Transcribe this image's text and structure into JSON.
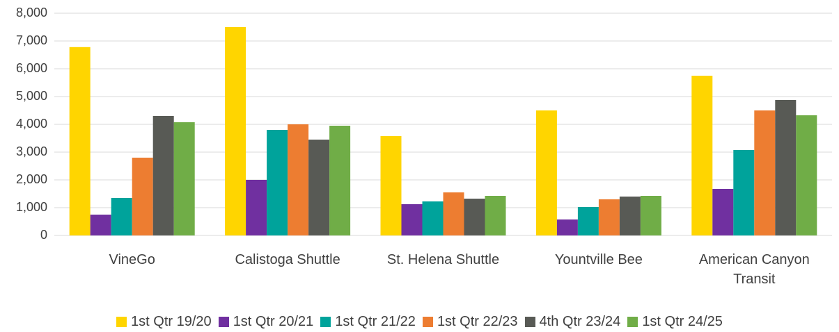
{
  "chart_data": {
    "type": "bar",
    "categories": [
      "VineGo",
      "Calistoga Shuttle",
      "St. Helena Shuttle",
      "Yountville Bee",
      "American Canyon Transit"
    ],
    "series": [
      {
        "name": "1st Qtr 19/20",
        "color": "#FFD500",
        "values": [
          6780,
          7500,
          3575,
          4500,
          5750
        ]
      },
      {
        "name": "1st Qtr 20/21",
        "color": "#7030A0",
        "values": [
          750,
          2000,
          1125,
          575,
          1675
        ]
      },
      {
        "name": "1st Qtr 21/22",
        "color": "#00A39B",
        "values": [
          1350,
          3800,
          1225,
          1025,
          3075
        ]
      },
      {
        "name": "1st Qtr 22/23",
        "color": "#ED7D31",
        "values": [
          2800,
          4000,
          1550,
          1300,
          4500
        ]
      },
      {
        "name": "4th Qtr 23/24",
        "color": "#585A55",
        "values": [
          4300,
          3450,
          1325,
          1400,
          4875
        ]
      },
      {
        "name": "1st Qtr 24/25",
        "color": "#70AD47",
        "values": [
          4075,
          3950,
          1425,
          1425,
          4325
        ]
      }
    ],
    "ylim": [
      0,
      8000
    ],
    "yticks": [
      0,
      {
        "value": 1000,
        "label": "1,000"
      },
      {
        "value": 2000,
        "label": "2,000"
      },
      {
        "value": 3000,
        "label": "3,000"
      },
      {
        "value": 4000,
        "label": "4,000"
      },
      {
        "value": 5000,
        "label": "5,000"
      },
      {
        "value": 6000,
        "label": "6,000"
      },
      {
        "value": 7000,
        "label": "7,000"
      },
      {
        "value": 8000,
        "label": "8,000"
      }
    ],
    "grid": true
  }
}
